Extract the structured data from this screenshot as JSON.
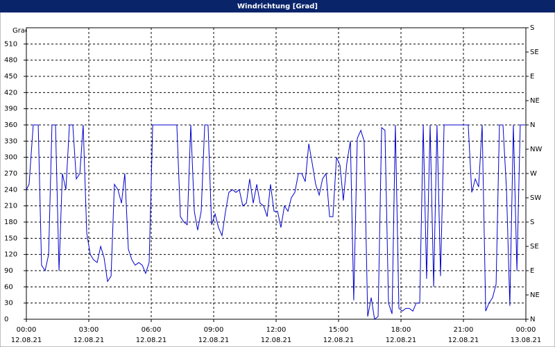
{
  "chart_data": {
    "type": "line",
    "title": "Windrichtung [Grad]",
    "y_label": "Grad",
    "x": [
      0,
      0.13,
      0.33,
      0.57,
      0.73,
      0.9,
      1.07,
      1.23,
      1.4,
      1.57,
      1.73,
      1.9,
      2.07,
      2.23,
      2.4,
      2.57,
      2.73,
      2.9,
      3.07,
      3.23,
      3.4,
      3.57,
      3.73,
      3.9,
      4.07,
      4.23,
      4.4,
      4.57,
      4.73,
      4.9,
      5.07,
      5.23,
      5.4,
      5.57,
      5.73,
      5.9,
      6.07,
      7.23,
      7.4,
      7.57,
      7.73,
      7.9,
      8.07,
      8.23,
      8.4,
      8.57,
      8.73,
      8.9,
      9.07,
      9.23,
      9.4,
      9.57,
      9.73,
      9.9,
      10.07,
      10.23,
      10.4,
      10.57,
      10.73,
      10.9,
      11.07,
      11.23,
      11.4,
      11.57,
      11.73,
      11.9,
      12.07,
      12.23,
      12.4,
      12.57,
      12.73,
      12.9,
      13.07,
      13.23,
      13.4,
      13.57,
      13.73,
      13.9,
      14.07,
      14.23,
      14.4,
      14.57,
      14.73,
      14.9,
      15.07,
      15.23,
      15.4,
      15.57,
      15.73,
      15.9,
      16.07,
      16.23,
      16.4,
      16.57,
      16.73,
      16.9,
      17.07,
      17.23,
      17.4,
      17.57,
      17.73,
      17.9,
      18.07,
      18.23,
      18.4,
      18.57,
      18.73,
      18.9,
      19.07,
      19.23,
      19.4,
      19.57,
      19.73,
      19.9,
      20.07,
      21.23,
      21.4,
      21.57,
      21.73,
      21.9,
      22.07,
      22.23,
      22.4,
      22.57,
      22.73,
      22.9,
      23.07,
      23.23,
      23.4,
      23.57,
      23.73,
      23.97
    ],
    "values": [
      240,
      250,
      360,
      360,
      100,
      90,
      120,
      360,
      360,
      90,
      270,
      240,
      360,
      360,
      260,
      270,
      360,
      160,
      120,
      110,
      105,
      135,
      115,
      70,
      80,
      250,
      240,
      215,
      270,
      130,
      110,
      100,
      105,
      100,
      85,
      105,
      360,
      360,
      190,
      180,
      175,
      360,
      200,
      165,
      200,
      360,
      360,
      175,
      195,
      170,
      155,
      200,
      235,
      240,
      235,
      240,
      210,
      215,
      260,
      215,
      250,
      215,
      210,
      190,
      250,
      200,
      200,
      170,
      210,
      200,
      225,
      235,
      270,
      270,
      255,
      325,
      290,
      250,
      230,
      260,
      270,
      190,
      190,
      300,
      285,
      220,
      290,
      330,
      35,
      335,
      350,
      330,
      5,
      40,
      0,
      5,
      355,
      350,
      30,
      10,
      360,
      20,
      15,
      20,
      20,
      15,
      30,
      30,
      360,
      75,
      360,
      60,
      360,
      80,
      360,
      360,
      235,
      260,
      245,
      360,
      15,
      30,
      40,
      65,
      360,
      360,
      240,
      25,
      360,
      90,
      360,
      360
    ],
    "color": "#0000cc",
    "xlim": [
      0,
      24
    ],
    "xticks": [
      {
        "value": 0,
        "label": "00:00",
        "date": "12.08.21"
      },
      {
        "value": 3,
        "label": "03:00",
        "date": "12.08.21"
      },
      {
        "value": 6,
        "label": "06:00",
        "date": "12.08.21"
      },
      {
        "value": 9,
        "label": "09:00",
        "date": "12.08.21"
      },
      {
        "value": 12,
        "label": "12:00",
        "date": "12.08.21"
      },
      {
        "value": 15,
        "label": "15:00",
        "date": "12.08.21"
      },
      {
        "value": 18,
        "label": "18:00",
        "date": "12.08.21"
      },
      {
        "value": 21,
        "label": "21:00",
        "date": "12.08.21"
      },
      {
        "value": 24,
        "label": "00:00",
        "date": "13.08.21"
      }
    ],
    "ylim": [
      0,
      540
    ],
    "yticks": [
      0,
      30,
      60,
      90,
      120,
      150,
      180,
      210,
      240,
      270,
      300,
      330,
      360,
      390,
      420,
      450,
      480,
      510
    ],
    "y2lim": [
      0,
      540
    ],
    "y2ticks": [
      {
        "value": 0,
        "label": "N"
      },
      {
        "value": 45,
        "label": "NE"
      },
      {
        "value": 90,
        "label": "E"
      },
      {
        "value": 135,
        "label": "SE"
      },
      {
        "value": 180,
        "label": "S"
      },
      {
        "value": 225,
        "label": "SW"
      },
      {
        "value": 270,
        "label": "W"
      },
      {
        "value": 315,
        "label": "NW"
      },
      {
        "value": 360,
        "label": "N"
      },
      {
        "value": 405,
        "label": "NE"
      },
      {
        "value": 450,
        "label": "E"
      },
      {
        "value": 495,
        "label": "SE"
      },
      {
        "value": 540,
        "label": "S"
      }
    ],
    "grid": true
  }
}
